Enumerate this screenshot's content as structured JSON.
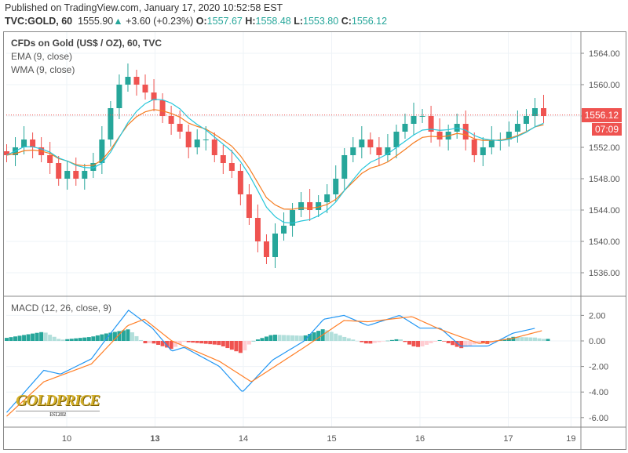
{
  "header": {
    "published": "Published on TradingView.com, January 17, 2020 10:52:58 EST",
    "symbol": "TVC:GOLD, 60",
    "last": "1555.90",
    "change": "+3.60 (+0.23%)",
    "o_label": "O:",
    "o": "1557.67",
    "h_label": "H:",
    "h": "1558.48",
    "l_label": "L:",
    "l": "1553.80",
    "c_label": "C:",
    "c": "1556.12"
  },
  "colors": {
    "up": "#26a69a",
    "down": "#ef5350",
    "ema": "#f57c20",
    "wma": "#26c6da",
    "macd": "#2196f3",
    "signal": "#ff7f27"
  },
  "chart_data": [
    {
      "type": "candlestick",
      "title": "CFDs on Gold (US$ / OZ), 60, TVC",
      "legend": [
        "EMA (9, close)",
        "WMA (9, close)"
      ],
      "ylim": [
        1534,
        1566
      ],
      "yticks": [
        "1564.00",
        "1560.00",
        "1556.00",
        "1552.00",
        "1548.00",
        "1544.00",
        "1540.00",
        "1536.00"
      ],
      "last_price_label": "1556.12",
      "countdown": "07:09",
      "last_price": 1556.12,
      "x_day_range": [
        -0.68,
        5.4
      ],
      "closes": [
        1551,
        1552,
        1553,
        1552,
        1551,
        1550,
        1548,
        1549,
        1548,
        1549,
        1550,
        1553,
        1557,
        1560,
        1561,
        1560,
        1559,
        1558,
        1556,
        1555,
        1554,
        1552,
        1553,
        1553,
        1551,
        1550,
        1549,
        1546,
        1543,
        1540,
        1538,
        1541,
        1542,
        1544,
        1545,
        1544,
        1545,
        1546,
        1548,
        1551,
        1552,
        1553,
        1552,
        1551,
        1552,
        1554,
        1555,
        1556,
        1556,
        1554,
        1553,
        1554,
        1555,
        1553,
        1551,
        1552,
        1553,
        1553,
        1554,
        1555,
        1556,
        1557,
        1556
      ]
    },
    {
      "type": "line",
      "title": "MACD (12, 26, close, 9)",
      "ylim": [
        -6.8,
        2.8
      ],
      "yticks": [
        "2.00",
        "0.00",
        "-2.00",
        "-4.00",
        "-6.00"
      ],
      "series": [
        {
          "name": "MACD",
          "x": [
            -0.68,
            -0.26,
            -0.07,
            0.28,
            0.43,
            0.7,
            0.97,
            1.19,
            1.33,
            1.73,
            1.99,
            2.33,
            2.69,
            2.91,
            3.14,
            3.41,
            3.77,
            4.0,
            4.23,
            4.46,
            4.77,
            5.05,
            5.31
          ],
          "y": [
            -5.6,
            -2.3,
            -2.6,
            -1.4,
            0,
            2.4,
            1.0,
            -0.8,
            -0.5,
            -2.0,
            -4.0,
            -1.5,
            0,
            1.7,
            2.0,
            1.2,
            2.0,
            1.0,
            1.0,
            -0.4,
            -0.4,
            0.6,
            1.0
          ]
        },
        {
          "name": "Signal",
          "x": [
            -0.68,
            -0.26,
            0.28,
            0.69,
            0.88,
            1.19,
            1.73,
            2.09,
            2.69,
            3.14,
            3.41,
            3.91,
            4.23,
            4.67,
            5.05,
            5.38
          ],
          "y": [
            -5.9,
            -3.2,
            -1.8,
            1.2,
            1.7,
            0.0,
            -1.6,
            -3.2,
            -0.5,
            1.6,
            1.5,
            1.9,
            0.9,
            -0.2,
            0.2,
            0.8
          ]
        }
      ]
    },
    {
      "type": "axis",
      "xticks": [
        {
          "label": "10",
          "day": 0
        },
        {
          "label": "13",
          "day": 1,
          "bold": true
        },
        {
          "label": "14",
          "day": 2
        },
        {
          "label": "15",
          "day": 3
        },
        {
          "label": "16",
          "day": 4
        },
        {
          "label": "17",
          "day": 5
        },
        {
          "label": "19",
          "day": 5.71
        }
      ]
    }
  ],
  "watermark": {
    "brand": "GOLDPRICE",
    "est": "EST. 2002"
  }
}
